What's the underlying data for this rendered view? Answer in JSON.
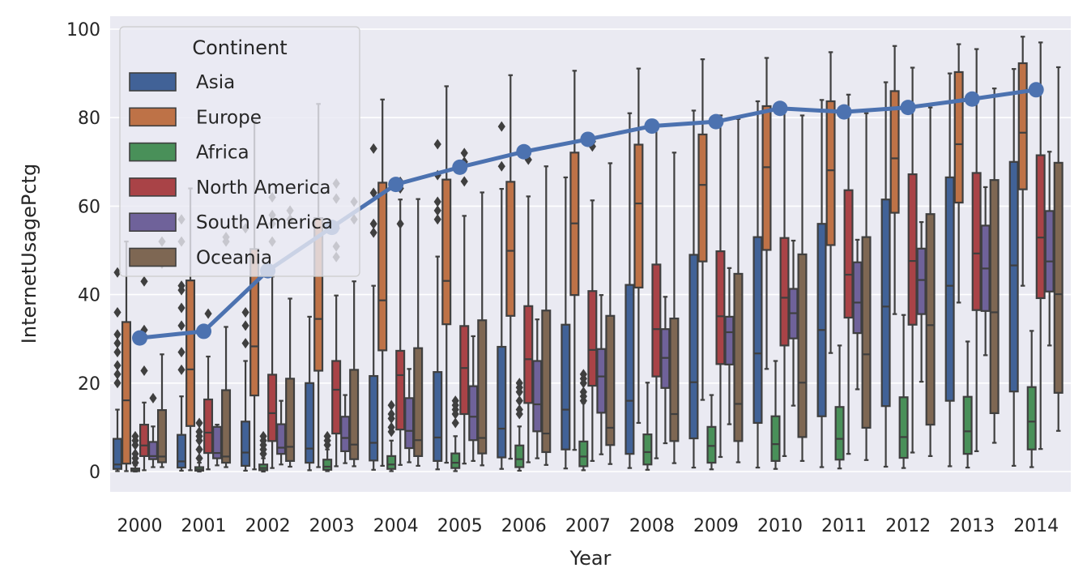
{
  "chart_data": {
    "type": "box",
    "xlabel": "Year",
    "ylabel": "InternetUsagePctg",
    "ylim": [
      -5,
      103
    ],
    "yticks": [
      0,
      20,
      40,
      60,
      80,
      100
    ],
    "grid": true,
    "legend": {
      "title": "Continent",
      "position": "top-left"
    },
    "categories": [
      "2000",
      "2001",
      "2002",
      "2003",
      "2004",
      "2005",
      "2006",
      "2007",
      "2008",
      "2009",
      "2010",
      "2011",
      "2012",
      "2013",
      "2014"
    ],
    "series": [
      {
        "name": "Asia",
        "color": "#4c72b0",
        "boxes": [
          {
            "q1": 0.6,
            "median": 1.6,
            "q3": 7.4,
            "whisker_low": 0.1,
            "whisker_high": 14,
            "outliers": [
              20,
              22,
              24,
              27,
              29,
              31,
              36,
              45
            ]
          },
          {
            "q1": 0.9,
            "median": 2.3,
            "q3": 8.3,
            "whisker_low": 0.2,
            "whisker_high": 17,
            "outliers": [
              23,
              27,
              33,
              37,
              41,
              42,
              52,
              57
            ]
          },
          {
            "q1": 1.3,
            "median": 4.3,
            "q3": 11.3,
            "whisker_low": 0.2,
            "whisker_high": 25,
            "outliers": [
              29,
              33,
              36,
              55
            ]
          },
          {
            "q1": 2.0,
            "median": 5.2,
            "q3": 20,
            "whisker_low": 0.3,
            "whisker_high": 35
          },
          {
            "q1": 2.5,
            "median": 6.5,
            "q3": 21.6,
            "whisker_low": 0.4,
            "whisker_high": 42,
            "outliers": [
              54,
              56,
              63,
              73
            ]
          },
          {
            "q1": 2.4,
            "median": 7.7,
            "q3": 22.5,
            "whisker_low": 0.5,
            "whisker_high": 48.6,
            "outliers": [
              57,
              59,
              61,
              67,
              74
            ]
          },
          {
            "q1": 3.2,
            "median": 9.7,
            "q3": 28.2,
            "whisker_low": 0.6,
            "whisker_high": 63.9,
            "outliers": [
              69,
              78
            ]
          },
          {
            "q1": 5.0,
            "median": 14,
            "q3": 33.2,
            "whisker_low": 0.7,
            "whisker_high": 66.5
          },
          {
            "q1": 4.0,
            "median": 16,
            "q3": 42.2,
            "whisker_low": 0.8,
            "whisker_high": 81
          },
          {
            "q1": 7.5,
            "median": 20.2,
            "q3": 49,
            "whisker_low": 0.9,
            "whisker_high": 81.6
          },
          {
            "q1": 11,
            "median": 26.7,
            "q3": 53,
            "whisker_low": 0.9,
            "whisker_high": 83.7
          },
          {
            "q1": 12.5,
            "median": 32,
            "q3": 56,
            "whisker_low": 1.0,
            "whisker_high": 84
          },
          {
            "q1": 14.8,
            "median": 37.3,
            "q3": 61.5,
            "whisker_low": 1.1,
            "whisker_high": 88
          },
          {
            "q1": 16,
            "median": 42,
            "q3": 66.5,
            "whisker_low": 1.2,
            "whisker_high": 90
          },
          {
            "q1": 18.1,
            "median": 46.6,
            "q3": 70,
            "whisker_low": 1.3,
            "whisker_high": 91
          }
        ]
      },
      {
        "name": "Europe",
        "color": "#dd8452",
        "boxes": [
          {
            "q1": 1.8,
            "median": 16.1,
            "q3": 33.8,
            "whisker_low": 0.1,
            "whisker_high": 52
          },
          {
            "q1": 10.3,
            "median": 23.1,
            "q3": 43.2,
            "whisker_low": 0.3,
            "whisker_high": 64
          },
          {
            "q1": 17.2,
            "median": 28.3,
            "q3": 50.3,
            "whisker_low": 0.5,
            "whisker_high": 79.2
          },
          {
            "q1": 22.8,
            "median": 34.5,
            "q3": 57.3,
            "whisker_low": 1.0,
            "whisker_high": 83.1
          },
          {
            "q1": 27.4,
            "median": 38.7,
            "q3": 65.3,
            "whisker_low": 1.3,
            "whisker_high": 84.1
          },
          {
            "q1": 33.3,
            "median": 43.1,
            "q3": 66,
            "whisker_low": 2.0,
            "whisker_high": 87.1
          },
          {
            "q1": 35.2,
            "median": 49.9,
            "q3": 65.5,
            "whisker_low": 2.9,
            "whisker_high": 89.6
          },
          {
            "q1": 39.9,
            "median": 56.1,
            "q3": 72.1,
            "whisker_low": 4.9,
            "whisker_high": 90.6
          },
          {
            "q1": 41.6,
            "median": 60.6,
            "q3": 73.9,
            "whisker_low": 11,
            "whisker_high": 91.1
          },
          {
            "q1": 47.5,
            "median": 64.8,
            "q3": 76.2,
            "whisker_low": 16.2,
            "whisker_high": 93.2
          },
          {
            "q1": 50.1,
            "median": 68.8,
            "q3": 82.6,
            "whisker_low": 23.2,
            "whisker_high": 93.5
          },
          {
            "q1": 51.2,
            "median": 68.1,
            "q3": 83.7,
            "whisker_low": 26.8,
            "whisker_high": 94.8
          },
          {
            "q1": 58.5,
            "median": 70.8,
            "q3": 86,
            "whisker_low": 35.6,
            "whisker_high": 96.2
          },
          {
            "q1": 60.8,
            "median": 74,
            "q3": 90.3,
            "whisker_low": 38.2,
            "whisker_high": 96.6
          },
          {
            "q1": 63.8,
            "median": 76.6,
            "q3": 92.3,
            "whisker_low": 42,
            "whisker_high": 98.3
          }
        ]
      },
      {
        "name": "Africa",
        "color": "#55a868",
        "boxes": [
          {
            "q1": 0.1,
            "median": 0.3,
            "q3": 0.7,
            "whisker_low": 0.0,
            "whisker_high": 1.4,
            "outliers": [
              2,
              3,
              4,
              6,
              7,
              8
            ]
          },
          {
            "q1": 0.2,
            "median": 0.5,
            "q3": 1.0,
            "whisker_low": 0.0,
            "whisker_high": 2.0,
            "outliers": [
              3,
              5,
              7,
              8,
              9,
              11
            ]
          },
          {
            "q1": 0.3,
            "median": 0.8,
            "q3": 1.6,
            "whisker_low": 0.0,
            "whisker_high": 3.0,
            "outliers": [
              4,
              5,
              6,
              7,
              8
            ]
          },
          {
            "q1": 0.4,
            "median": 1.1,
            "q3": 2.7,
            "whisker_low": 0.1,
            "whisker_high": 5.0,
            "outliers": [
              6,
              7,
              8
            ]
          },
          {
            "q1": 0.6,
            "median": 1.6,
            "q3": 3.5,
            "whisker_low": 0.1,
            "whisker_high": 7.0,
            "outliers": [
              9,
              10,
              12,
              13,
              15
            ]
          },
          {
            "q1": 0.8,
            "median": 2.0,
            "q3": 4.1,
            "whisker_low": 0.1,
            "whisker_high": 8.0,
            "outliers": [
              11,
              13,
              14,
              15,
              16
            ]
          },
          {
            "q1": 1.0,
            "median": 2.8,
            "q3": 5.9,
            "whisker_low": 0.2,
            "whisker_high": 10.2,
            "outliers": [
              13,
              14,
              16,
              18,
              19,
              20
            ]
          },
          {
            "q1": 1.2,
            "median": 3.4,
            "q3": 6.8,
            "whisker_low": 0.3,
            "whisker_high": 15.5,
            "outliers": [
              16,
              17,
              18,
              20,
              21,
              22
            ]
          },
          {
            "q1": 1.6,
            "median": 4.4,
            "q3": 8.4,
            "whisker_low": 0.4,
            "whisker_high": 20.1
          },
          {
            "q1": 2.0,
            "median": 5.8,
            "q3": 10.1,
            "whisker_low": 0.5,
            "whisker_high": 17.3
          },
          {
            "q1": 2.4,
            "median": 6.2,
            "q3": 12.5,
            "whisker_low": 0.6,
            "whisker_high": 25
          },
          {
            "q1": 2.7,
            "median": 7.4,
            "q3": 14.6,
            "whisker_low": 0.7,
            "whisker_high": 28.5
          },
          {
            "q1": 3.1,
            "median": 7.8,
            "q3": 16.8,
            "whisker_low": 0.8,
            "whisker_high": 35.4
          },
          {
            "q1": 4.0,
            "median": 9.1,
            "q3": 16.9,
            "whisker_low": 0.9,
            "whisker_high": 29.4
          },
          {
            "q1": 5.0,
            "median": 11.3,
            "q3": 19.1,
            "whisker_low": 1.0,
            "whisker_high": 31.8
          }
        ]
      },
      {
        "name": "North America",
        "color": "#c44e52",
        "boxes": [
          {
            "q1": 3.5,
            "median": 5.9,
            "q3": 10.6,
            "whisker_low": 0.3,
            "whisker_high": 15.6,
            "outliers": [
              22.8,
              30.6,
              32,
              43
            ]
          },
          {
            "q1": 4.2,
            "median": 8.8,
            "q3": 16.3,
            "whisker_low": 0.5,
            "whisker_high": 26,
            "outliers": [
              35.7
            ]
          },
          {
            "q1": 6.9,
            "median": 13.2,
            "q3": 21.9,
            "whisker_low": 0.8,
            "whisker_high": 44.1,
            "outliers": [
              52,
              56,
              58,
              62
            ]
          },
          {
            "q1": 8.6,
            "median": 18.5,
            "q3": 25.0,
            "whisker_low": 1.2,
            "whisker_high": 39.8,
            "outliers": [
              48.5,
              50.9,
              55,
              61.7,
              65.1
            ]
          },
          {
            "q1": 9.5,
            "median": 21.8,
            "q3": 27.3,
            "whisker_low": 1.5,
            "whisker_high": 61.5,
            "outliers": [
              56,
              64,
              65.5
            ]
          },
          {
            "q1": 13,
            "median": 23.4,
            "q3": 32.9,
            "whisker_low": 1.8,
            "whisker_high": 57.8,
            "outliers": [
              65.6,
              70,
              72
            ]
          },
          {
            "q1": 15.5,
            "median": 25.4,
            "q3": 37.4,
            "whisker_low": 2.1,
            "whisker_high": 62.2,
            "outliers": [
              70.5
            ]
          },
          {
            "q1": 19.4,
            "median": 27.5,
            "q3": 40.8,
            "whisker_low": 2.4,
            "whisker_high": 61.3,
            "outliers": [
              73.5,
              74.6
            ]
          },
          {
            "q1": 21.5,
            "median": 32.2,
            "q3": 46.8,
            "whisker_low": 3.0,
            "whisker_high": 77.5
          },
          {
            "q1": 24.3,
            "median": 35.1,
            "q3": 49.8,
            "whisker_low": 3.3,
            "whisker_high": 80.5
          },
          {
            "q1": 28.5,
            "median": 39.3,
            "q3": 52.8,
            "whisker_low": 3.5,
            "whisker_high": 81.5
          },
          {
            "q1": 34.8,
            "median": 44.5,
            "q3": 63.6,
            "whisker_low": 4.0,
            "whisker_high": 85.2
          },
          {
            "q1": 33.2,
            "median": 47.6,
            "q3": 67.2,
            "whisker_low": 4.3,
            "whisker_high": 91.3
          },
          {
            "q1": 36.5,
            "median": 49.3,
            "q3": 67.5,
            "whisker_low": 4.6,
            "whisker_high": 95.5
          },
          {
            "q1": 39.2,
            "median": 52.9,
            "q3": 71.5,
            "whisker_low": 5.1,
            "whisker_high": 97.0
          }
        ]
      },
      {
        "name": "South America",
        "color": "#8172b3",
        "boxes": [
          {
            "q1": 2.8,
            "median": 3.5,
            "q3": 6.7,
            "whisker_low": 1.0,
            "whisker_high": 10.2,
            "outliers": [
              16.6
            ]
          },
          {
            "q1": 3.0,
            "median": 4.2,
            "q3": 10.1,
            "whisker_low": 1.4,
            "whisker_high": 10.6
          },
          {
            "q1": 4.0,
            "median": 5.4,
            "q3": 10.7,
            "whisker_low": 1.6,
            "whisker_high": 16.0
          },
          {
            "q1": 4.6,
            "median": 7.6,
            "q3": 12.4,
            "whisker_low": 1.9,
            "whisker_high": 17.3
          },
          {
            "q1": 5.3,
            "median": 9.2,
            "q3": 16.6,
            "whisker_low": 2.1,
            "whisker_high": 23.2
          },
          {
            "q1": 7.1,
            "median": 12.4,
            "q3": 19.3,
            "whisker_low": 2.4,
            "whisker_high": 30.6
          },
          {
            "q1": 9.1,
            "median": 15.2,
            "q3": 25.0,
            "whisker_low": 3.0,
            "whisker_high": 34.4
          },
          {
            "q1": 13.3,
            "median": 21.5,
            "q3": 27.7,
            "whisker_low": 3.9,
            "whisker_high": 39.9
          },
          {
            "q1": 18.9,
            "median": 25.7,
            "q3": 32.2,
            "whisker_low": 6.4,
            "whisker_high": 39.5
          },
          {
            "q1": 24.2,
            "median": 31.5,
            "q3": 35.0,
            "whisker_low": 10.7,
            "whisker_high": 46.0
          },
          {
            "q1": 30.1,
            "median": 35.8,
            "q3": 41.3,
            "whisker_low": 14.9,
            "whisker_high": 52.2
          },
          {
            "q1": 31.3,
            "median": 38.2,
            "q3": 47.3,
            "whisker_low": 18.6,
            "whisker_high": 52.4
          },
          {
            "q1": 35.6,
            "median": 43.3,
            "q3": 50.4,
            "whisker_low": 20.3,
            "whisker_high": 56.4
          },
          {
            "q1": 36.3,
            "median": 45.9,
            "q3": 55.6,
            "whisker_low": 26.3,
            "whisker_high": 64.3
          },
          {
            "q1": 40.7,
            "median": 47.5,
            "q3": 58.9,
            "whisker_low": 28.5,
            "whisker_high": 72.3
          }
        ]
      },
      {
        "name": "Oceania",
        "color": "#937860",
        "boxes": [
          {
            "q1": 2.1,
            "median": 3.4,
            "q3": 13.9,
            "whisker_low": 1.0,
            "whisker_high": 26.5,
            "outliers": [
              47,
              52
            ]
          },
          {
            "q1": 2.0,
            "median": 3.4,
            "q3": 18.4,
            "whisker_low": 1.0,
            "whisker_high": 32.7,
            "outliers": [
              52,
              53
            ]
          },
          {
            "q1": 2.4,
            "median": 5.6,
            "q3": 21.0,
            "whisker_low": 1.1,
            "whisker_high": 39.1,
            "outliers": [
              57,
              59
            ]
          },
          {
            "q1": 2.8,
            "median": 6.1,
            "q3": 23.0,
            "whisker_low": 1.2,
            "whisker_high": 43.0,
            "outliers": [
              57,
              61
            ]
          },
          {
            "q1": 3.5,
            "median": 7.1,
            "q3": 27.9,
            "whisker_low": 1.3,
            "whisker_high": 61.6
          },
          {
            "q1": 4.1,
            "median": 7.6,
            "q3": 34.2,
            "whisker_low": 1.4,
            "whisker_high": 63.1
          },
          {
            "q1": 4.4,
            "median": 8.6,
            "q3": 36.4,
            "whisker_low": 1.5,
            "whisker_high": 69.0
          },
          {
            "q1": 6.0,
            "median": 9.9,
            "q3": 35.2,
            "whisker_low": 1.7,
            "whisker_high": 69.7
          },
          {
            "q1": 6.9,
            "median": 13.0,
            "q3": 34.6,
            "whisker_low": 1.9,
            "whisker_high": 72.1
          },
          {
            "q1": 6.9,
            "median": 15.3,
            "q3": 44.7,
            "whisker_low": 2.1,
            "whisker_high": 79.7
          },
          {
            "q1": 7.8,
            "median": 20.1,
            "q3": 49.1,
            "whisker_low": 2.4,
            "whisker_high": 80.5
          },
          {
            "q1": 9.9,
            "median": 26.5,
            "q3": 53.0,
            "whisker_low": 2.6,
            "whisker_high": 81.0
          },
          {
            "q1": 10.6,
            "median": 33.1,
            "q3": 58.2,
            "whisker_low": 3.5,
            "whisker_high": 82.3
          },
          {
            "q1": 13.2,
            "median": 36.0,
            "q3": 65.9,
            "whisker_low": 6.5,
            "whisker_high": 86.6
          },
          {
            "q1": 17.8,
            "median": 40.1,
            "q3": 69.8,
            "whisker_low": 9.2,
            "whisker_high": 91.4
          }
        ]
      }
    ],
    "line_series": {
      "color": "#4c72b0",
      "values": [
        30.2,
        31.7,
        45.4,
        55.2,
        64.9,
        68.8,
        72.3,
        75.1,
        78.1,
        79.1,
        82.1,
        81.3,
        82.3,
        84.2,
        86.3
      ]
    }
  }
}
